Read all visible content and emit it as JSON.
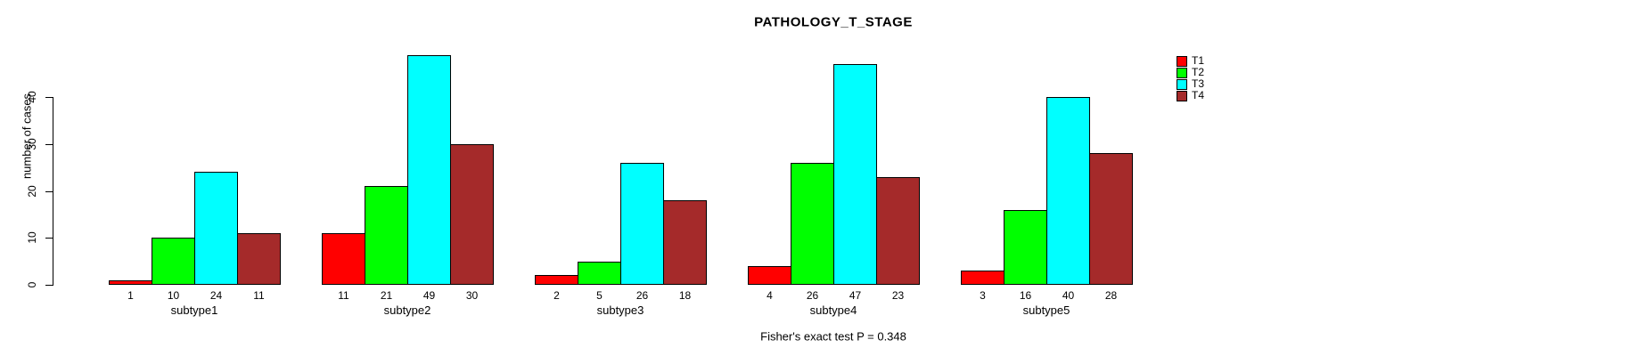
{
  "title": "PATHOLOGY_T_STAGE",
  "footer": "Fisher's exact test P = 0.348",
  "chart_data": {
    "type": "bar",
    "title": "PATHOLOGY_T_STAGE",
    "xlabel": "",
    "ylabel": "number of cases",
    "categories": [
      "subtype1",
      "subtype2",
      "subtype3",
      "subtype4",
      "subtype5"
    ],
    "series": [
      {
        "name": "T1",
        "color": "#FF0000",
        "values": [
          1,
          11,
          2,
          4,
          3
        ]
      },
      {
        "name": "T2",
        "color": "#00FF00",
        "values": [
          10,
          21,
          5,
          26,
          16
        ]
      },
      {
        "name": "T3",
        "color": "#00FFFF",
        "values": [
          24,
          49,
          26,
          47,
          40
        ]
      },
      {
        "name": "T4",
        "color": "#A52A2A",
        "values": [
          11,
          30,
          18,
          23,
          28
        ]
      }
    ],
    "bar_value_labels": {
      "subtype1": [
        1,
        10,
        24,
        11
      ],
      "subtype2": [
        11,
        21,
        49,
        30
      ],
      "subtype3": [
        2,
        5,
        26,
        18
      ],
      "subtype4": [
        4,
        26,
        47,
        23
      ],
      "subtype5": [
        3,
        16,
        40,
        28
      ]
    },
    "yticks": [
      0,
      10,
      20,
      30,
      40
    ],
    "ylim": [
      0,
      49
    ],
    "grid": false,
    "legend_position": "top-right",
    "annotation": "Fisher's exact test P = 0.348"
  }
}
